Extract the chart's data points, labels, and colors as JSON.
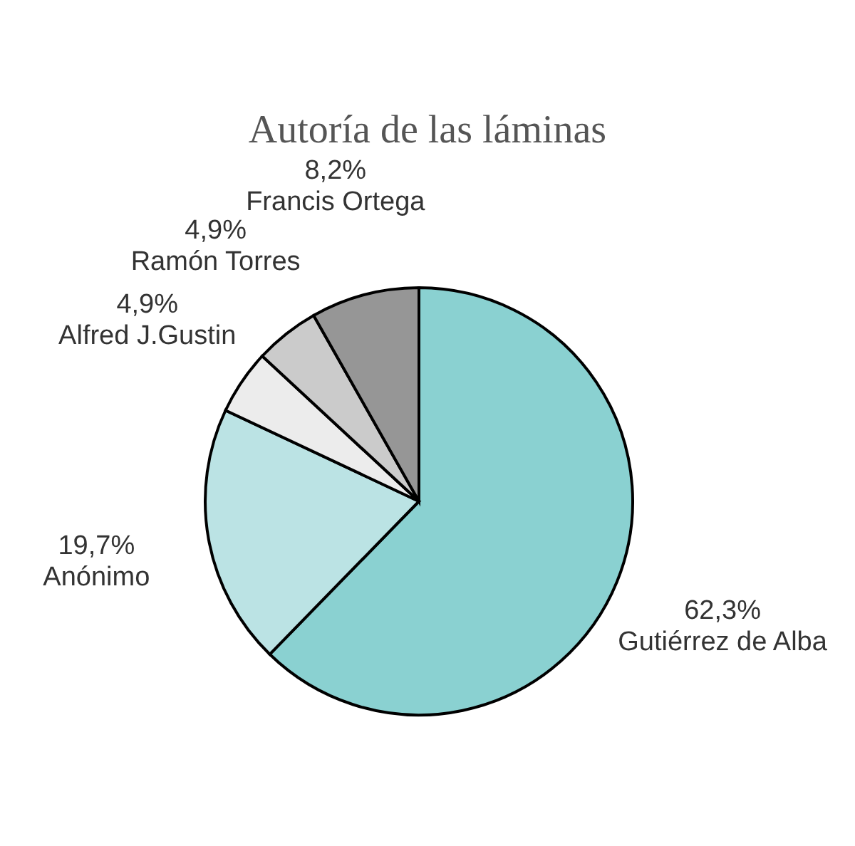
{
  "chart_data": {
    "type": "pie",
    "title": "Autoría de las láminas",
    "categories": [
      "Gutiérrez de Alba",
      "Anónimo",
      "Alfred J.Gustin",
      "Ramón Torres",
      "Francis Ortega"
    ],
    "values": [
      62.3,
      19.7,
      4.9,
      4.9,
      8.2
    ],
    "value_labels": [
      "62,3%",
      "19,7%",
      "4,9%",
      "4,9%",
      "8,2%"
    ],
    "colors": [
      "#8ad1d1",
      "#bbe3e4",
      "#ececec",
      "#cbcbcb",
      "#969696"
    ],
    "legend": false
  }
}
